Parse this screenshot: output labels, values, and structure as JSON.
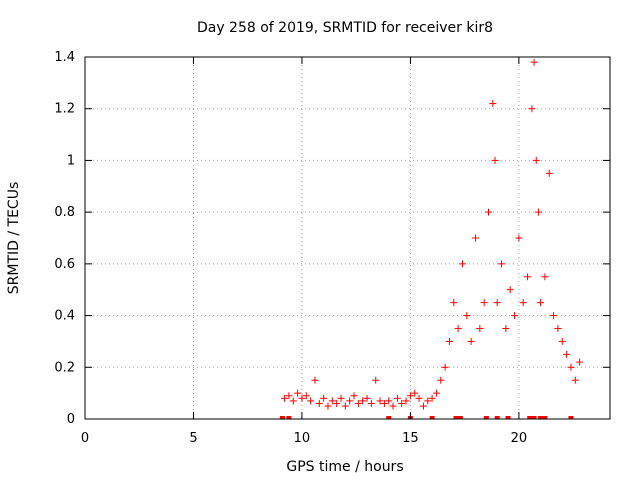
{
  "chart_data": {
    "type": "scatter",
    "title": "Day 258 of 2019, SRMTID for receiver kir8",
    "xlabel": "GPS time / hours",
    "ylabel": "SRMTID / TECUs",
    "xlim": [
      0,
      24.2
    ],
    "ylim": [
      0,
      1.4
    ],
    "xticks": [
      0,
      5,
      10,
      15,
      20
    ],
    "xtick_labels": [
      "0",
      "5",
      "10",
      "15",
      "20"
    ],
    "yticks": [
      0,
      0.2,
      0.4,
      0.6,
      0.8,
      1,
      1.2,
      1.4
    ],
    "ytick_labels": [
      "0",
      "0.2",
      "0.4",
      "0.6",
      "0.8",
      "1",
      "1.2",
      "1.4"
    ],
    "grid": true,
    "marker": "+",
    "series": [
      {
        "name": "SRMTID",
        "color": "#ff0000",
        "x": [
          9.2,
          9.4,
          9.6,
          9.8,
          10.0,
          10.2,
          10.4,
          10.6,
          10.8,
          11.0,
          11.2,
          11.4,
          11.6,
          11.8,
          12.0,
          12.2,
          12.4,
          12.6,
          12.8,
          13.0,
          13.2,
          13.4,
          13.6,
          13.8,
          14.0,
          14.2,
          14.4,
          14.6,
          14.8,
          15.0,
          15.2,
          15.4,
          15.6,
          15.8,
          16.0,
          16.2,
          16.4,
          16.6,
          16.8,
          17.0,
          17.2,
          17.4,
          17.6,
          17.8,
          18.0,
          18.2,
          18.4,
          18.6,
          18.8,
          18.9,
          19.0,
          19.2,
          19.4,
          19.6,
          19.8,
          20.0,
          20.2,
          20.4,
          20.6,
          20.7,
          20.8,
          20.9,
          21.0,
          21.2,
          21.4,
          21.6,
          21.8,
          22.0,
          22.2,
          22.4,
          22.6,
          22.8
        ],
        "y": [
          0.08,
          0.09,
          0.07,
          0.1,
          0.08,
          0.09,
          0.07,
          0.15,
          0.06,
          0.08,
          0.05,
          0.07,
          0.06,
          0.08,
          0.05,
          0.07,
          0.09,
          0.06,
          0.07,
          0.08,
          0.06,
          0.15,
          0.07,
          0.06,
          0.07,
          0.05,
          0.08,
          0.06,
          0.07,
          0.09,
          0.1,
          0.08,
          0.05,
          0.07,
          0.08,
          0.1,
          0.15,
          0.2,
          0.3,
          0.45,
          0.35,
          0.6,
          0.4,
          0.3,
          0.7,
          0.35,
          0.45,
          0.8,
          1.22,
          1.0,
          0.45,
          0.6,
          0.35,
          0.5,
          0.4,
          0.7,
          0.45,
          0.55,
          1.2,
          1.38,
          1.0,
          0.8,
          0.45,
          0.55,
          0.95,
          0.4,
          0.35,
          0.3,
          0.25,
          0.2,
          0.15,
          0.22
        ],
        "baseline_marks_x": [
          9.1,
          9.4,
          14.0,
          15.0,
          16.0,
          17.1,
          17.3,
          18.5,
          19.0,
          19.5,
          20.5,
          20.7,
          21.0,
          21.2,
          22.4
        ]
      }
    ]
  }
}
